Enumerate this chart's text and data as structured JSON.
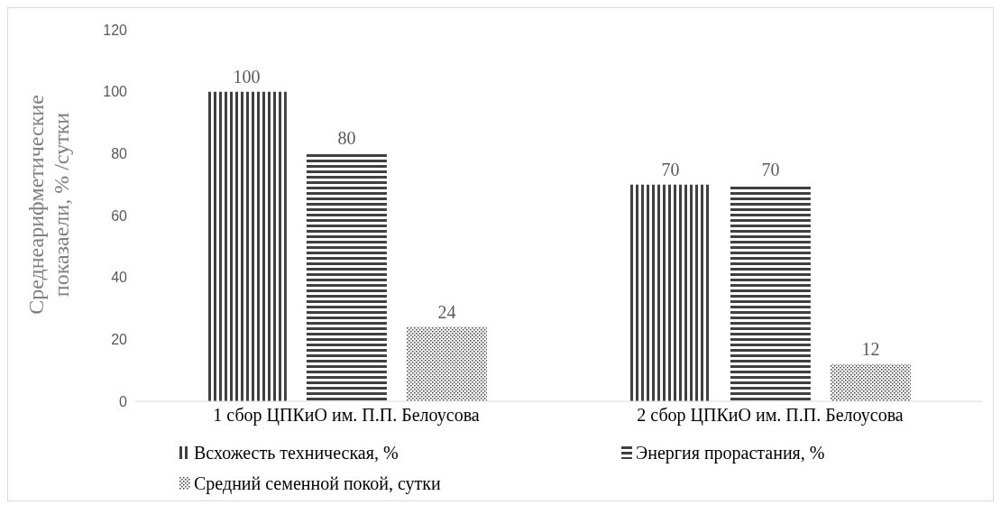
{
  "chart_data": {
    "type": "bar",
    "ylabel": "Среднеарифметические показаели, % /сутки",
    "categories": [
      "1 сбор ЦПКиО  им. П.П. Белоусова",
      "2 сбор ЦПКиО  им. П.П. Белоусова"
    ],
    "series": [
      {
        "name": "Всхожесть техническая, %",
        "color": "#404040",
        "values": [
          100,
          70
        ]
      },
      {
        "name": "Энергия прорастания, %",
        "color": "#404040",
        "values": [
          80,
          70
        ]
      },
      {
        "name": "Средний семенной покой, сутки",
        "color": "#404040",
        "values": [
          24,
          12
        ]
      }
    ],
    "ylim": [
      0,
      120
    ],
    "yticks": [
      0,
      20,
      40,
      60,
      80,
      100,
      120
    ],
    "grid": false,
    "legend": "bottom",
    "data_labels": true
  }
}
